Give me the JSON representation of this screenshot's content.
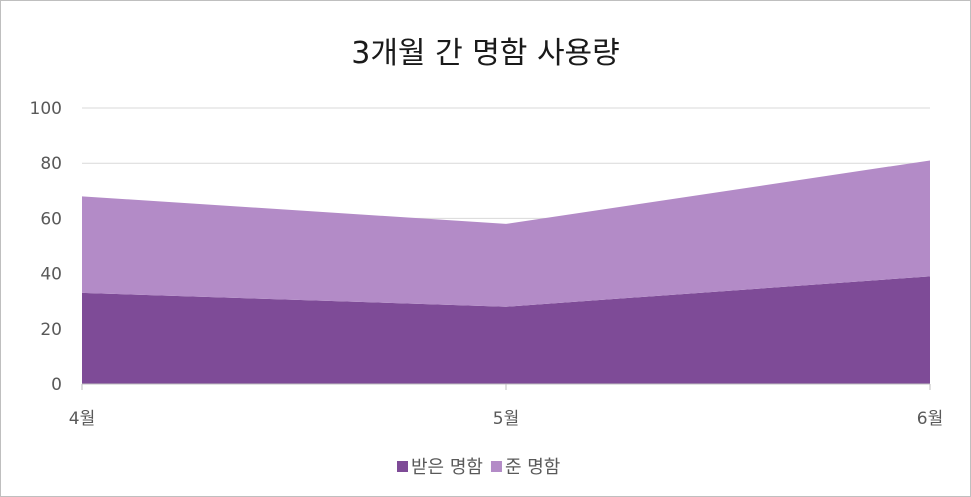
{
  "chart_data": {
    "type": "area",
    "stacked": true,
    "title": "3개월 간 명함 사용량",
    "categories": [
      "4월",
      "5월",
      "6월"
    ],
    "series": [
      {
        "name": "받은 명함",
        "values": [
          33,
          28,
          39
        ],
        "color": "#7e4b97"
      },
      {
        "name": "준 명함",
        "values": [
          35,
          30,
          42
        ],
        "color": "#b38bc7"
      }
    ],
    "ylim": [
      0,
      100
    ],
    "yticks": [
      0,
      20,
      40,
      60,
      80,
      100
    ],
    "grid": true,
    "legend": "bottom",
    "colors": {
      "gridline": "#d9d9d9",
      "axis": "#bfbfbf",
      "tick_text": "#595959"
    }
  }
}
